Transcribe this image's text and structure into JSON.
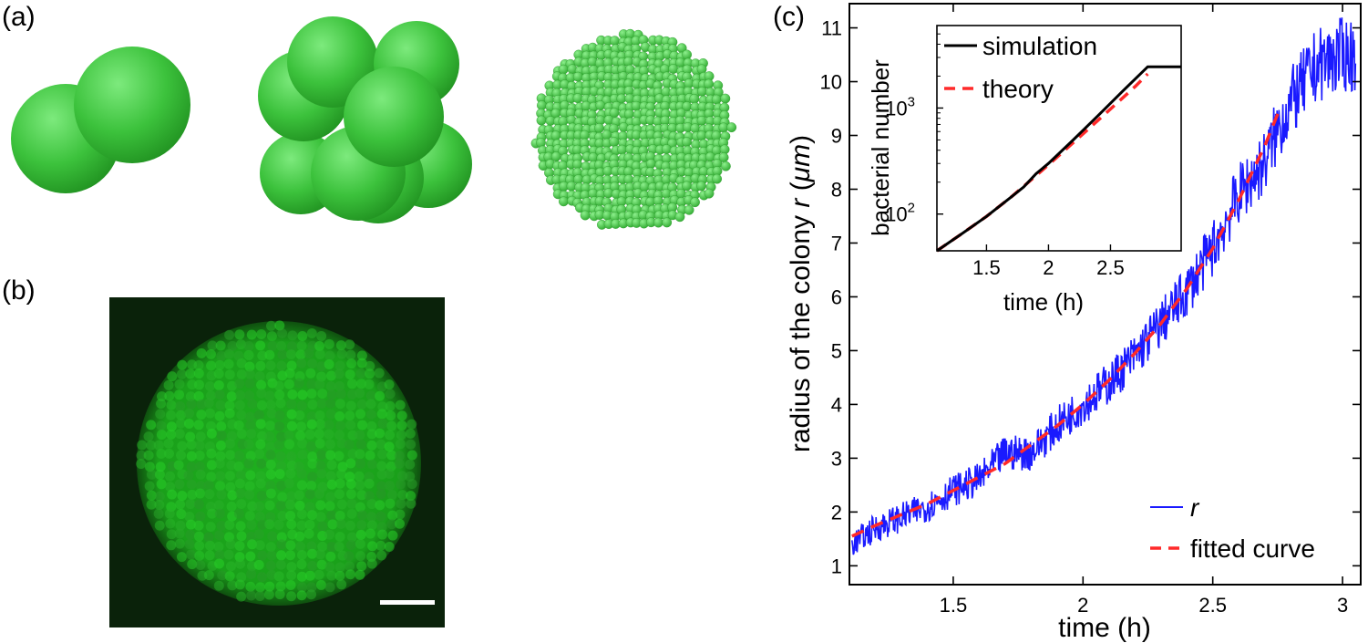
{
  "panels": {
    "a": "(a)",
    "b": "(b)",
    "c": "(c)"
  },
  "colors": {
    "sphere": "#3cc23c",
    "fluor_bg": "#0c2a0c",
    "sim": "#000000",
    "theory": "#ff2a2a",
    "radius": "#1a1aff",
    "fit": "#ff2a2a"
  },
  "chart_data": [
    {
      "type": "line",
      "title": "",
      "xlabel": "time (h)",
      "ylabel": "radius of the colony r (μm)",
      "ylabel_parts": [
        "radius of the colony ",
        "r",
        " (",
        "μm",
        ")"
      ],
      "xlim": [
        1.1,
        3.07
      ],
      "ylim": [
        0.65,
        11.45
      ],
      "xticks": [
        1.5,
        2,
        2.5,
        3
      ],
      "xtick_labels": [
        "1.5",
        "2",
        "2.5",
        "3"
      ],
      "yticks": [
        1,
        2,
        3,
        4,
        5,
        6,
        7,
        8,
        9,
        10,
        11
      ],
      "ytick_labels": [
        "1",
        "2",
        "3",
        "4",
        "5",
        "6",
        "7",
        "8",
        "9",
        "10",
        "11"
      ],
      "legend_position": "bottom-right",
      "series": [
        {
          "name": "r",
          "style": "solid",
          "color": "#1a1aff",
          "x": [
            1.11,
            1.2,
            1.3,
            1.4,
            1.5,
            1.6,
            1.7,
            1.8,
            1.9,
            2.0,
            2.1,
            2.2,
            2.3,
            2.4,
            2.5,
            2.55,
            2.6,
            2.7,
            2.75,
            2.8,
            2.9,
            3.0,
            3.05
          ],
          "y": [
            1.4,
            1.7,
            1.9,
            2.1,
            2.4,
            2.6,
            3.1,
            3.1,
            3.6,
            4.0,
            4.4,
            4.9,
            5.5,
            6.1,
            6.9,
            7.4,
            7.9,
            8.5,
            9.1,
            9.6,
            10.3,
            10.5,
            10.5
          ]
        },
        {
          "name": "fitted curve",
          "style": "dashed",
          "color": "#ff2a2a",
          "x": [
            1.11,
            1.2,
            1.3,
            1.4,
            1.5,
            1.6,
            1.7,
            1.8,
            1.9,
            2.0,
            2.1,
            2.2,
            2.3,
            2.4,
            2.5,
            2.6,
            2.7,
            2.75
          ],
          "y": [
            1.55,
            1.75,
            1.95,
            2.15,
            2.4,
            2.65,
            2.9,
            3.25,
            3.6,
            4.0,
            4.45,
            4.95,
            5.5,
            6.15,
            6.9,
            7.8,
            8.8,
            9.4
          ]
        }
      ]
    },
    {
      "type": "line",
      "title": "",
      "xlabel": "time (h)",
      "ylabel": "bacterial number",
      "yscale": "log",
      "xlim": [
        1.1,
        3.07
      ],
      "ylim": [
        45,
        6000
      ],
      "xticks": [
        1.5,
        2,
        2.5
      ],
      "xtick_labels": [
        "1.5",
        "2",
        "2.5"
      ],
      "yticks": [
        100,
        1000
      ],
      "ytick_labels": [
        {
          "base": "10",
          "exp": "2"
        },
        {
          "base": "10",
          "exp": "3"
        }
      ],
      "legend_position": "top-left",
      "series": [
        {
          "name": "simulation",
          "style": "solid",
          "color": "#000000",
          "x": [
            1.1,
            1.3,
            1.5,
            1.7,
            1.8,
            1.9,
            2.0,
            2.2,
            2.4,
            2.6,
            2.8,
            3.07
          ],
          "y": [
            45,
            65,
            95,
            145,
            180,
            240,
            300,
            500,
            850,
            1450,
            2450,
            2450
          ]
        },
        {
          "name": "theory",
          "style": "dashed",
          "color": "#ff2a2a",
          "x": [
            1.1,
            1.3,
            1.5,
            1.7,
            1.9,
            2.1,
            2.3,
            2.5,
            2.7,
            2.8
          ],
          "y": [
            45,
            65,
            95,
            145,
            230,
            370,
            600,
            980,
            1600,
            2100
          ]
        }
      ]
    }
  ]
}
